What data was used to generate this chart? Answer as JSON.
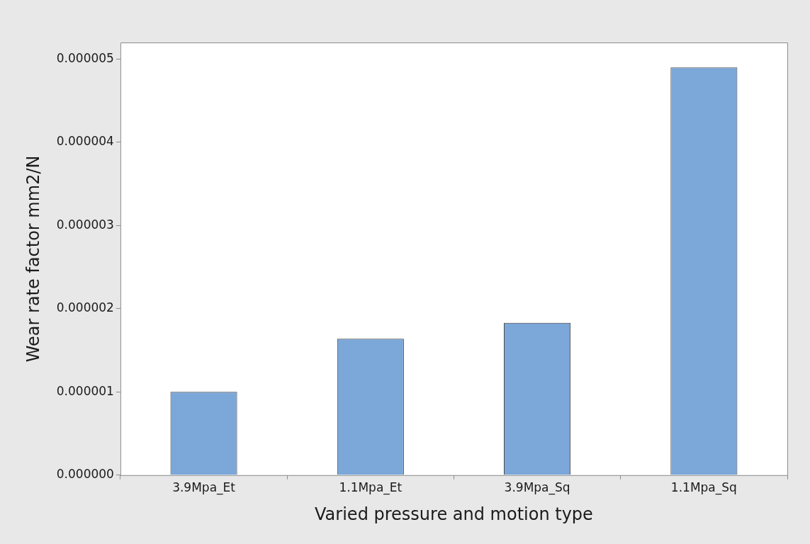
{
  "chart_data": {
    "type": "bar",
    "xlabel": "Varied pressure and motion type",
    "ylabel": "Wear rate factor mm2/N",
    "categories": [
      "3.9Mpa_Et",
      "1.1Mpa_Et",
      "3.9Mpa_Sq",
      "1.1Mpa_Sq"
    ],
    "values": [
      1e-06,
      1.64e-06,
      1.83e-06,
      4.9e-06
    ],
    "color": "#7ba7d9",
    "ylim": [
      0,
      5.2e-06
    ],
    "yticks": [
      {
        "value": 0,
        "label": "0.000000"
      },
      {
        "value": 1e-06,
        "label": "0.000001"
      },
      {
        "value": 2e-06,
        "label": "0.000002"
      },
      {
        "value": 3e-06,
        "label": "0.000003"
      },
      {
        "value": 4e-06,
        "label": "0.000004"
      },
      {
        "value": 5e-06,
        "label": "0.000005"
      }
    ],
    "grid": false,
    "legend": false
  }
}
